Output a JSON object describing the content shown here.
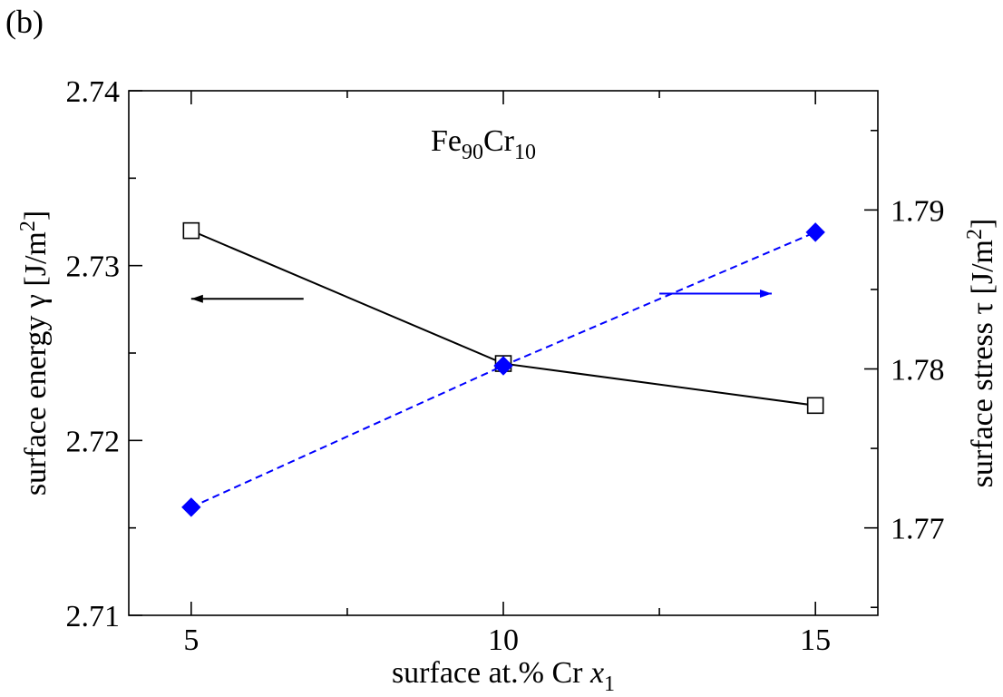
{
  "panel_label": "(b)",
  "chart_data": {
    "type": "line",
    "title_base1": "Fe",
    "title_sub1": "90",
    "title_base2": "Cr",
    "title_sub2": "10",
    "x": [
      5,
      10,
      15
    ],
    "xlim": [
      4,
      16
    ],
    "x_ticks": [
      5,
      10,
      15
    ],
    "x_tick_labels": [
      "5",
      "10",
      "15"
    ],
    "xlabel_prefix": "surface at.% Cr ",
    "xlabel_var": "x",
    "xlabel_sub": "1",
    "y_left": {
      "label": "surface energy γ [J/m",
      "label_sup": "2",
      "label_end": "]",
      "ylim": [
        2.71,
        2.74
      ],
      "ticks": [
        2.71,
        2.72,
        2.73,
        2.74
      ],
      "tick_labels": [
        "2.71",
        "2.72",
        "2.73",
        "2.74"
      ]
    },
    "y_right": {
      "label": "surface stress τ [J/m",
      "label_sup": "2",
      "label_end": "]",
      "ylim": [
        1.7645,
        1.7975
      ],
      "ticks": [
        1.77,
        1.78,
        1.79
      ],
      "tick_labels": [
        "1.77",
        "1.78",
        "1.79"
      ]
    },
    "series": [
      {
        "axis": "left",
        "values": [
          2.732,
          2.7244,
          2.722
        ],
        "color": "#000000",
        "marker": "open-square",
        "line": "solid"
      },
      {
        "axis": "right",
        "values": [
          1.7713,
          1.7802,
          1.7886
        ],
        "color": "#0000ff",
        "marker": "filled-diamond",
        "line": "dashed"
      }
    ],
    "annotations": [
      {
        "type": "arrow",
        "direction": "left",
        "color": "#000000",
        "axis": "left",
        "x1": 5.0,
        "x2": 6.8,
        "y": 2.7281
      },
      {
        "type": "arrow",
        "direction": "right",
        "color": "#0000ff",
        "axis": "left",
        "x1": 12.5,
        "x2": 14.3,
        "y": 2.7284
      }
    ],
    "grid": false,
    "legend": "none"
  }
}
